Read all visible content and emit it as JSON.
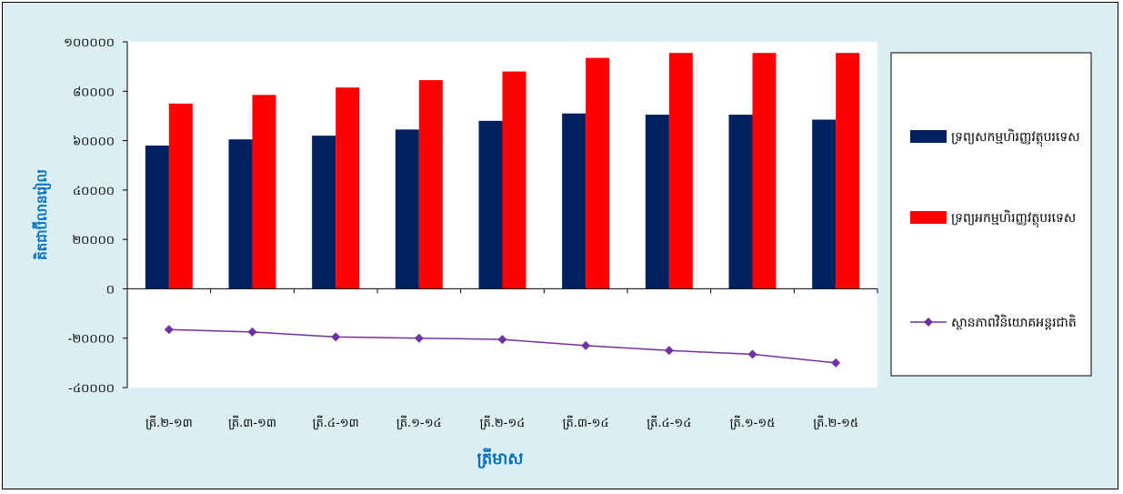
{
  "chart_data": {
    "type": "bar",
    "categories": [
      "ត្រី.២-១៣",
      "ត្រី.៣-១៣",
      "ត្រី.៤-១៣",
      "ត្រី.១-១៤",
      "ត្រី.២-១៤",
      "ត្រី.៣-១៤",
      "ត្រី.៤-១៤",
      "ត្រី.១-១៥",
      "ត្រី.២-១៥"
    ],
    "series": [
      {
        "name": "ទ្រព្យសកម្មហិរញ្ញវត្ថុបរទេស",
        "kind": "bar",
        "color": "#002060",
        "values": [
          58000,
          60500,
          62000,
          64500,
          68000,
          71000,
          70500,
          70500,
          68500
        ]
      },
      {
        "name": "ទ្រព្យអកម្មហិរញ្ញវត្ថុបរទេស",
        "kind": "bar",
        "color": "#ff0000",
        "values": [
          75000,
          78500,
          81500,
          84500,
          88000,
          93500,
          95500,
          95500,
          95500
        ]
      },
      {
        "name": "ស្ថានភាពវិនិយោគអន្តរជាតិ",
        "kind": "line",
        "color": "#7030a0",
        "values": [
          -16500,
          -17500,
          -19500,
          -20000,
          -20500,
          -23000,
          -25000,
          -26500,
          -30000
        ]
      }
    ],
    "ylim": [
      -40000,
      100000
    ],
    "yticks": [
      -40000,
      -20000,
      0,
      20000,
      40000,
      60000,
      80000,
      100000
    ],
    "ytick_labels": [
      "-៤០០០០",
      "-២០០០០",
      "០",
      "២០០០០",
      "៤០០០០",
      "៦០០០០",
      "៨០០០០",
      "១០០០០០"
    ],
    "ylabel": "គិតជាប៊ីលានរៀល",
    "xlabel": "ត្រីមាស",
    "legend_position": "right",
    "grid": false
  }
}
